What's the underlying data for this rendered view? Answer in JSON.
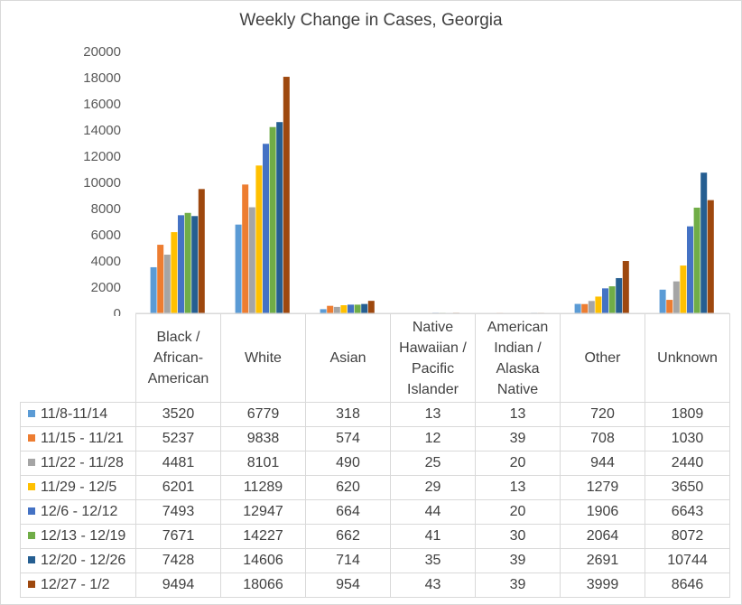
{
  "chart_data": {
    "type": "bar",
    "title": "Weekly Change in Cases, Georgia",
    "categories": [
      "Black / African-American",
      "White",
      "Asian",
      "Native Hawaiian / Pacific Islander",
      "American Indian / Alaska Native",
      "Other",
      "Unknown"
    ],
    "category_lines": [
      [
        "Black /",
        "African-",
        "American"
      ],
      [
        "White"
      ],
      [
        "Asian"
      ],
      [
        "Native",
        "Hawaiian /",
        "Pacific",
        "Islander"
      ],
      [
        "American",
        "Indian /",
        "Alaska",
        "Native"
      ],
      [
        "Other"
      ],
      [
        "Unknown"
      ]
    ],
    "y_ticks": [
      "0",
      "2000",
      "4000",
      "6000",
      "8000",
      "10000",
      "12000",
      "14000",
      "16000",
      "18000",
      "20000"
    ],
    "ylim": [
      0,
      20000
    ],
    "series": [
      {
        "name": "11/8-11/14",
        "color": "#5b9bd5",
        "values": [
          3520,
          6779,
          318,
          13,
          13,
          720,
          1809
        ]
      },
      {
        "name": "11/15 - 11/21",
        "color": "#ed7d31",
        "values": [
          5237,
          9838,
          574,
          12,
          39,
          708,
          1030
        ]
      },
      {
        "name": "11/22 - 11/28",
        "color": "#a5a5a5",
        "values": [
          4481,
          8101,
          490,
          25,
          20,
          944,
          2440
        ]
      },
      {
        "name": "11/29 - 12/5",
        "color": "#ffc000",
        "values": [
          6201,
          11289,
          620,
          29,
          13,
          1279,
          3650
        ]
      },
      {
        "name": "12/6 - 12/12",
        "color": "#4472c4",
        "values": [
          7493,
          12947,
          664,
          44,
          20,
          1906,
          6643
        ]
      },
      {
        "name": "12/13 - 12/19",
        "color": "#70ad47",
        "values": [
          7671,
          14227,
          662,
          41,
          30,
          2064,
          8072
        ]
      },
      {
        "name": "12/20 - 12/26",
        "color": "#255e91",
        "values": [
          7428,
          14606,
          714,
          35,
          39,
          2691,
          10744
        ]
      },
      {
        "name": "12/27 - 1/2",
        "color": "#9e480e",
        "values": [
          9494,
          18066,
          954,
          43,
          39,
          3999,
          8646
        ]
      }
    ],
    "legend": "data-table",
    "grid": false
  }
}
